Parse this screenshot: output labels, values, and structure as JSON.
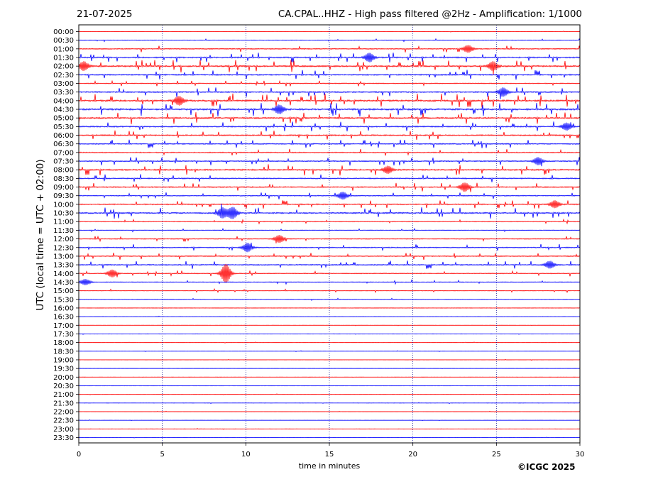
{
  "header": {
    "date": "21-07-2025",
    "title": "CA.CPAL..HHZ - High pass filtered @2Hz - Amplification: 1/1000"
  },
  "copyright": "©ICGC 2025",
  "chart_data": {
    "type": "line",
    "title": "CA.CPAL..HHZ - High pass filtered @2Hz - Amplification: 1/1000",
    "xlabel": "time in minutes",
    "ylabel": "UTC (local time = UTC + 02:00)",
    "xlim": [
      0,
      30
    ],
    "x_ticks": [
      0,
      5,
      10,
      15,
      20,
      25,
      30
    ],
    "vertical_grid": "dotted at every 5 minutes",
    "colors": {
      "even_trace": "#ff0000",
      "odd_trace": "#0000ff",
      "grid": "#00008b"
    },
    "y_tick_labels": [
      "00:00",
      "00:30",
      "01:00",
      "01:30",
      "02:00",
      "02:30",
      "03:00",
      "03:30",
      "04:00",
      "04:30",
      "05:00",
      "05:30",
      "06:00",
      "06:30",
      "07:00",
      "07:30",
      "08:00",
      "08:30",
      "09:00",
      "09:30",
      "10:00",
      "10:30",
      "11:00",
      "11:30",
      "12:00",
      "12:30",
      "13:00",
      "13:30",
      "14:00",
      "14:30",
      "15:00",
      "15:30",
      "16:00",
      "16:30",
      "17:00",
      "17:30",
      "18:00",
      "18:30",
      "19:00",
      "19:30",
      "20:00",
      "20:30",
      "21:00",
      "21:30",
      "22:00",
      "22:30",
      "23:00",
      "23:30"
    ],
    "trace_noise_level": [
      0.3,
      1.0,
      2.5,
      3.5,
      4.5,
      3.5,
      2.0,
      3.5,
      5.0,
      5.0,
      4.5,
      3.5,
      3.5,
      3.0,
      2.5,
      3.0,
      4.0,
      3.0,
      3.0,
      2.5,
      3.0,
      4.0,
      1.5,
      1.2,
      2.0,
      2.5,
      2.5,
      3.0,
      2.0,
      1.5,
      1.2,
      0.8,
      0.5,
      0.5,
      0.3,
      0.3,
      0.3,
      0.3,
      0.3,
      0.3,
      0.3,
      0.3,
      0.3,
      0.3,
      0.3,
      0.3,
      0.3,
      0.3
    ],
    "events": [
      {
        "trace": "14:00",
        "minute": 8.8,
        "amplitude": 13
      },
      {
        "trace": "14:00",
        "minute": 2.0,
        "amplitude": 5
      },
      {
        "trace": "10:30",
        "minute": 9.2,
        "amplitude": 8
      },
      {
        "trace": "10:30",
        "minute": 8.6,
        "amplitude": 7
      },
      {
        "trace": "12:30",
        "minute": 10.1,
        "amplitude": 6
      },
      {
        "trace": "12:00",
        "minute": 12.0,
        "amplitude": 5
      },
      {
        "trace": "09:00",
        "minute": 23.1,
        "amplitude": 6
      },
      {
        "trace": "03:30",
        "minute": 25.4,
        "amplitude": 6
      },
      {
        "trace": "04:00",
        "minute": 6.0,
        "amplitude": 6
      },
      {
        "trace": "02:00",
        "minute": 0.3,
        "amplitude": 6
      },
      {
        "trace": "02:00",
        "minute": 24.8,
        "amplitude": 6
      },
      {
        "trace": "04:30",
        "minute": 12.0,
        "amplitude": 6
      },
      {
        "trace": "01:30",
        "minute": 17.4,
        "amplitude": 6
      },
      {
        "trace": "13:30",
        "minute": 28.2,
        "amplitude": 5
      },
      {
        "trace": "07:30",
        "minute": 27.5,
        "amplitude": 5
      },
      {
        "trace": "08:00",
        "minute": 18.5,
        "amplitude": 5
      },
      {
        "trace": "10:00",
        "minute": 28.5,
        "amplitude": 5
      },
      {
        "trace": "05:30",
        "minute": 29.2,
        "amplitude": 5
      },
      {
        "trace": "01:00",
        "minute": 23.3,
        "amplitude": 5
      },
      {
        "trace": "09:30",
        "minute": 15.8,
        "amplitude": 5
      },
      {
        "trace": "14:30",
        "minute": 0.4,
        "amplitude": 4
      }
    ]
  }
}
